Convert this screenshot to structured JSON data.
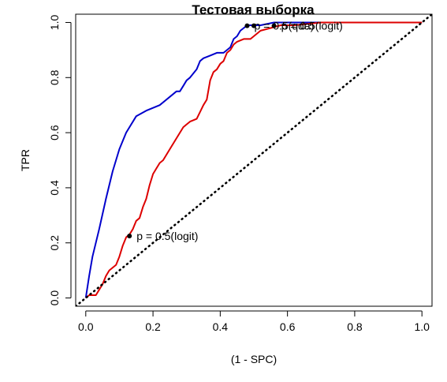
{
  "chart_data": {
    "type": "line",
    "title": "Тестовая выборка",
    "xlabel": "(1 - SPC)",
    "ylabel": "TPR",
    "xlim": [
      -0.03,
      1.03
    ],
    "ylim": [
      -0.03,
      1.03
    ],
    "xticks": [
      "0.0",
      "0.2",
      "0.4",
      "0.6",
      "0.8",
      "1.0"
    ],
    "yticks": [
      "0.0",
      "0.2",
      "0.4",
      "0.6",
      "0.8",
      "1.0"
    ],
    "xtick_values": [
      0,
      0.2,
      0.4,
      0.6,
      0.8,
      1.0
    ],
    "ytick_values": [
      0,
      0.2,
      0.4,
      0.6,
      0.8,
      1.0
    ],
    "grid": false,
    "series": [
      {
        "color": "#0000cc",
        "x": [
          0,
          0.01,
          0.02,
          0.04,
          0.06,
          0.08,
          0.1,
          0.12,
          0.15,
          0.18,
          0.22,
          0.25,
          0.27,
          0.28,
          0.29,
          0.3,
          0.31,
          0.33,
          0.34,
          0.35,
          0.37,
          0.39,
          0.41,
          0.42,
          0.43,
          0.44,
          0.45,
          0.46,
          0.47,
          0.48,
          0.5,
          0.52,
          0.56,
          0.6,
          0.65,
          0.75,
          0.88,
          1.0
        ],
        "y": [
          0,
          0.08,
          0.15,
          0.25,
          0.36,
          0.46,
          0.54,
          0.6,
          0.66,
          0.68,
          0.7,
          0.73,
          0.75,
          0.75,
          0.77,
          0.79,
          0.8,
          0.83,
          0.86,
          0.87,
          0.88,
          0.89,
          0.89,
          0.9,
          0.91,
          0.94,
          0.95,
          0.97,
          0.98,
          0.99,
          0.99,
          0.99,
          1.0,
          1.0,
          1.0,
          1.0,
          1.0,
          1.0
        ]
      },
      {
        "color": "#dd0000",
        "x": [
          0,
          0.01,
          0.03,
          0.05,
          0.06,
          0.07,
          0.08,
          0.09,
          0.1,
          0.11,
          0.12,
          0.13,
          0.14,
          0.15,
          0.16,
          0.17,
          0.18,
          0.19,
          0.2,
          0.21,
          0.22,
          0.23,
          0.25,
          0.27,
          0.29,
          0.3,
          0.31,
          0.33,
          0.35,
          0.36,
          0.37,
          0.38,
          0.39,
          0.4,
          0.41,
          0.42,
          0.43,
          0.44,
          0.45,
          0.47,
          0.49,
          0.52,
          0.55,
          0.58,
          0.62,
          0.7,
          0.8,
          1.0
        ],
        "y": [
          0,
          0.01,
          0.01,
          0.05,
          0.08,
          0.1,
          0.11,
          0.12,
          0.15,
          0.19,
          0.22,
          0.23,
          0.25,
          0.28,
          0.29,
          0.33,
          0.36,
          0.41,
          0.45,
          0.47,
          0.49,
          0.5,
          0.54,
          0.58,
          0.62,
          0.63,
          0.64,
          0.65,
          0.7,
          0.72,
          0.79,
          0.82,
          0.83,
          0.85,
          0.86,
          0.89,
          0.9,
          0.92,
          0.93,
          0.94,
          0.94,
          0.97,
          0.98,
          0.99,
          0.99,
          1.0,
          1.0,
          1.0
        ]
      },
      {
        "color": "#000000",
        "style": "dotted",
        "x": [
          -0.03,
          1.03
        ],
        "y": [
          -0.03,
          1.03
        ]
      }
    ],
    "points": [
      {
        "x": 0.13,
        "y": 0.225,
        "label": "p = 0.5(logit)"
      },
      {
        "x": 0.48,
        "y": 0.988,
        "label": "p = 0.5(qda)"
      },
      {
        "x": 0.5,
        "y": 0.988,
        "label": ""
      },
      {
        "x": 0.56,
        "y": 0.988,
        "label": "p = 0.5(logit)"
      }
    ]
  }
}
